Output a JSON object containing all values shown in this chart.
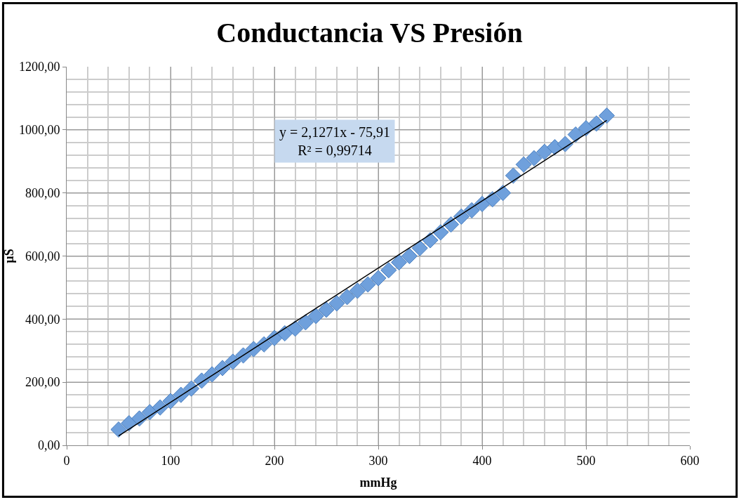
{
  "chart_data": {
    "type": "scatter",
    "title": "Conductancia VS Presión",
    "xlabel": "mmHg",
    "ylabel": "µS",
    "series": [
      {
        "color": "#6fa0dc",
        "marker": "diamond",
        "x": [
          50,
          60,
          70,
          80,
          90,
          100,
          110,
          120,
          130,
          140,
          150,
          160,
          170,
          180,
          190,
          200,
          210,
          220,
          230,
          240,
          250,
          260,
          270,
          280,
          290,
          300,
          310,
          320,
          330,
          340,
          350,
          360,
          370,
          380,
          390,
          400,
          410,
          420,
          430,
          440,
          450,
          460,
          470,
          480,
          490,
          500,
          510,
          520
        ],
        "values": [
          50,
          70,
          85,
          105,
          120,
          140,
          160,
          180,
          205,
          225,
          245,
          265,
          285,
          305,
          320,
          340,
          355,
          370,
          390,
          410,
          430,
          450,
          470,
          490,
          510,
          530,
          555,
          580,
          600,
          625,
          650,
          675,
          700,
          725,
          745,
          765,
          780,
          800,
          855,
          890,
          910,
          930,
          945,
          955,
          985,
          1005,
          1020,
          1045
        ]
      },
      {
        "type": "line",
        "color": "#000000",
        "x": [
          50,
          520
        ],
        "values": [
          30,
          1030
        ],
        "marker": "none"
      }
    ],
    "annotations": [
      "y = 2,1271x - 75,91\nR² = 0,99714"
    ],
    "xlim": [
      0,
      600
    ],
    "xticks": [
      0,
      100,
      200,
      300,
      400,
      500,
      600
    ],
    "ylim": [
      0,
      1200
    ],
    "yticks": [
      {
        "value": 0,
        "label": "0,00"
      },
      {
        "value": 200,
        "label": "200,00"
      },
      {
        "value": 400,
        "label": "400,00"
      },
      {
        "value": 600,
        "label": "600,00"
      },
      {
        "value": 800,
        "label": "800,00"
      },
      {
        "value": 1000,
        "label": "1000,00"
      },
      {
        "value": 1200,
        "label": "1200,00"
      }
    ],
    "grid": true,
    "legend": false
  }
}
